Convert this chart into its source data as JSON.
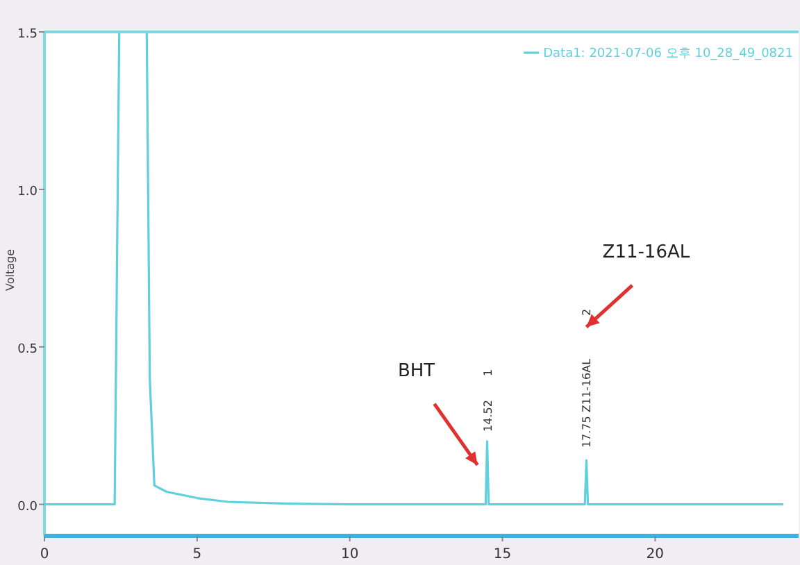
{
  "chart_data": {
    "type": "line",
    "ylabel": "Voltage",
    "xlim": [
      0,
      24.7
    ],
    "ylim": [
      -0.1,
      1.5
    ],
    "xticks": [
      0,
      5,
      10,
      15,
      20
    ],
    "yticks": [
      {
        "value": 0,
        "label": "0.0"
      },
      {
        "value": 0.5,
        "label": "0.5"
      },
      {
        "value": 1,
        "label": "1.0"
      },
      {
        "value": 1.5,
        "label": "1.5"
      }
    ],
    "legend": "top right",
    "grid": false,
    "series": [
      {
        "name": "Data1: 2021-07-06 오후 10_28_49_0821",
        "color": "#5fd0dc",
        "x": [
          0,
          2.3,
          2.45,
          3.35,
          3.45,
          3.6,
          4,
          5,
          6,
          8,
          10,
          14.45,
          14.5,
          14.55,
          17.7,
          17.75,
          17.8,
          24.2
        ],
        "values": [
          0,
          0,
          1.5,
          1.5,
          0.4,
          0.06,
          0.04,
          0.02,
          0.008,
          0.002,
          0,
          0,
          0.2,
          0,
          0,
          0.14,
          0,
          0
        ]
      }
    ],
    "annotations": [
      "BHT",
      "Z11-16AL",
      {
        "text": "14.52",
        "x": 14.5,
        "y": 0.2
      },
      "1",
      {
        "text": "17.75 Z11-16AL",
        "x": 17.75,
        "y": 0.14
      },
      "2"
    ]
  }
}
